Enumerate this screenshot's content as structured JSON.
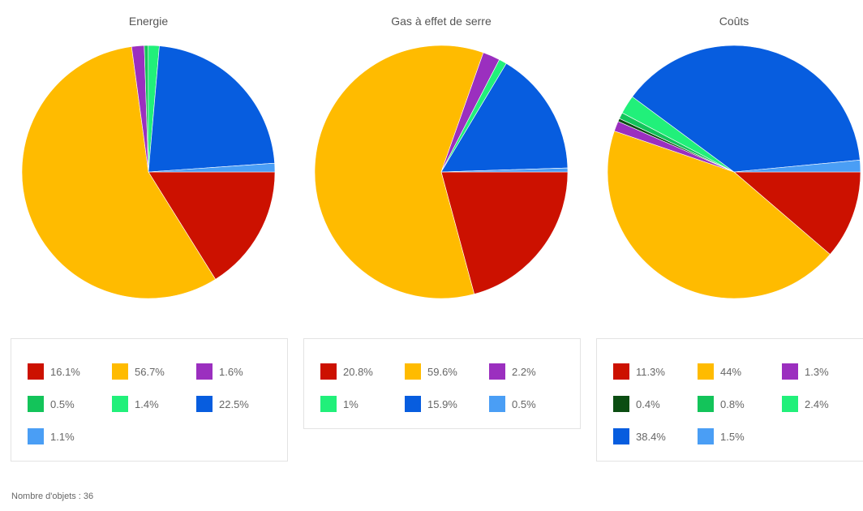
{
  "chart_data": [
    {
      "type": "pie",
      "title": "Energie",
      "colors": [
        "#cc1100",
        "#ffbb00",
        "#9b2fbf",
        "#13c45a",
        "#21f07a",
        "#075ddf",
        "#4a9ef5"
      ],
      "values": [
        16.1,
        56.7,
        1.6,
        0.5,
        1.4,
        22.5,
        1.1
      ],
      "labels": [
        "16.1%",
        "56.7%",
        "1.6%",
        "0.5%",
        "1.4%",
        "22.5%",
        "1.1%"
      ]
    },
    {
      "type": "pie",
      "title": "Gas à effet de serre",
      "colors": [
        "#cc1100",
        "#ffbb00",
        "#9b2fbf",
        "#21f07a",
        "#075ddf",
        "#4a9ef5"
      ],
      "values": [
        20.8,
        59.6,
        2.2,
        1,
        15.9,
        0.5
      ],
      "labels": [
        "20.8%",
        "59.6%",
        "2.2%",
        "1%",
        "15.9%",
        "0.5%"
      ]
    },
    {
      "type": "pie",
      "title": "Coûts",
      "colors": [
        "#cc1100",
        "#ffbb00",
        "#9b2fbf",
        "#0b4d12",
        "#13c45a",
        "#21f07a",
        "#075ddf",
        "#4a9ef5"
      ],
      "values": [
        11.3,
        44,
        1.3,
        0.4,
        0.8,
        2.4,
        38.4,
        1.5
      ],
      "labels": [
        "11.3%",
        "44%",
        "1.3%",
        "0.4%",
        "0.8%",
        "2.4%",
        "38.4%",
        "1.5%"
      ]
    }
  ],
  "footer": {
    "text": "Nombre d'objets : 36"
  }
}
